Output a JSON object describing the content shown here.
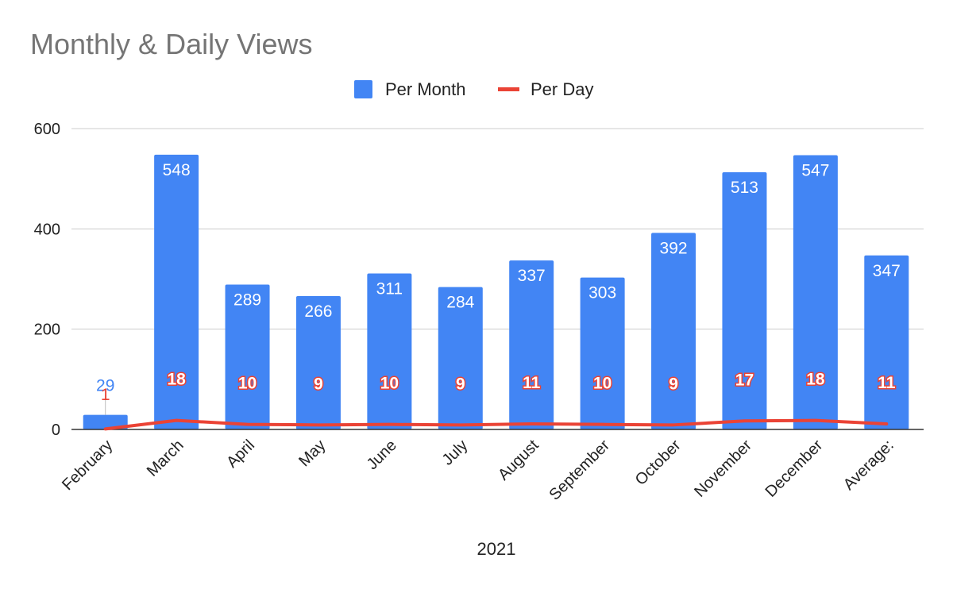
{
  "chart_data": {
    "type": "bar",
    "title": "Monthly & Daily Views",
    "xlabel": "2021",
    "ylabel": "",
    "ylim": [
      0,
      600
    ],
    "yticks": [
      0,
      200,
      400,
      600
    ],
    "grid": true,
    "legend_position": "top-center",
    "categories": [
      "February",
      "March",
      "April",
      "May",
      "June",
      "July",
      "August",
      "September",
      "October",
      "November",
      "December",
      "Average:"
    ],
    "series": [
      {
        "name": "Per Month",
        "type": "bar",
        "color": "#4285f4",
        "values": [
          29,
          548,
          289,
          266,
          311,
          284,
          337,
          303,
          392,
          513,
          547,
          347
        ]
      },
      {
        "name": "Per Day",
        "type": "line",
        "color": "#ea4335",
        "values": [
          1,
          18,
          10,
          9,
          10,
          9,
          11,
          10,
          9,
          17,
          18,
          11
        ]
      }
    ]
  }
}
